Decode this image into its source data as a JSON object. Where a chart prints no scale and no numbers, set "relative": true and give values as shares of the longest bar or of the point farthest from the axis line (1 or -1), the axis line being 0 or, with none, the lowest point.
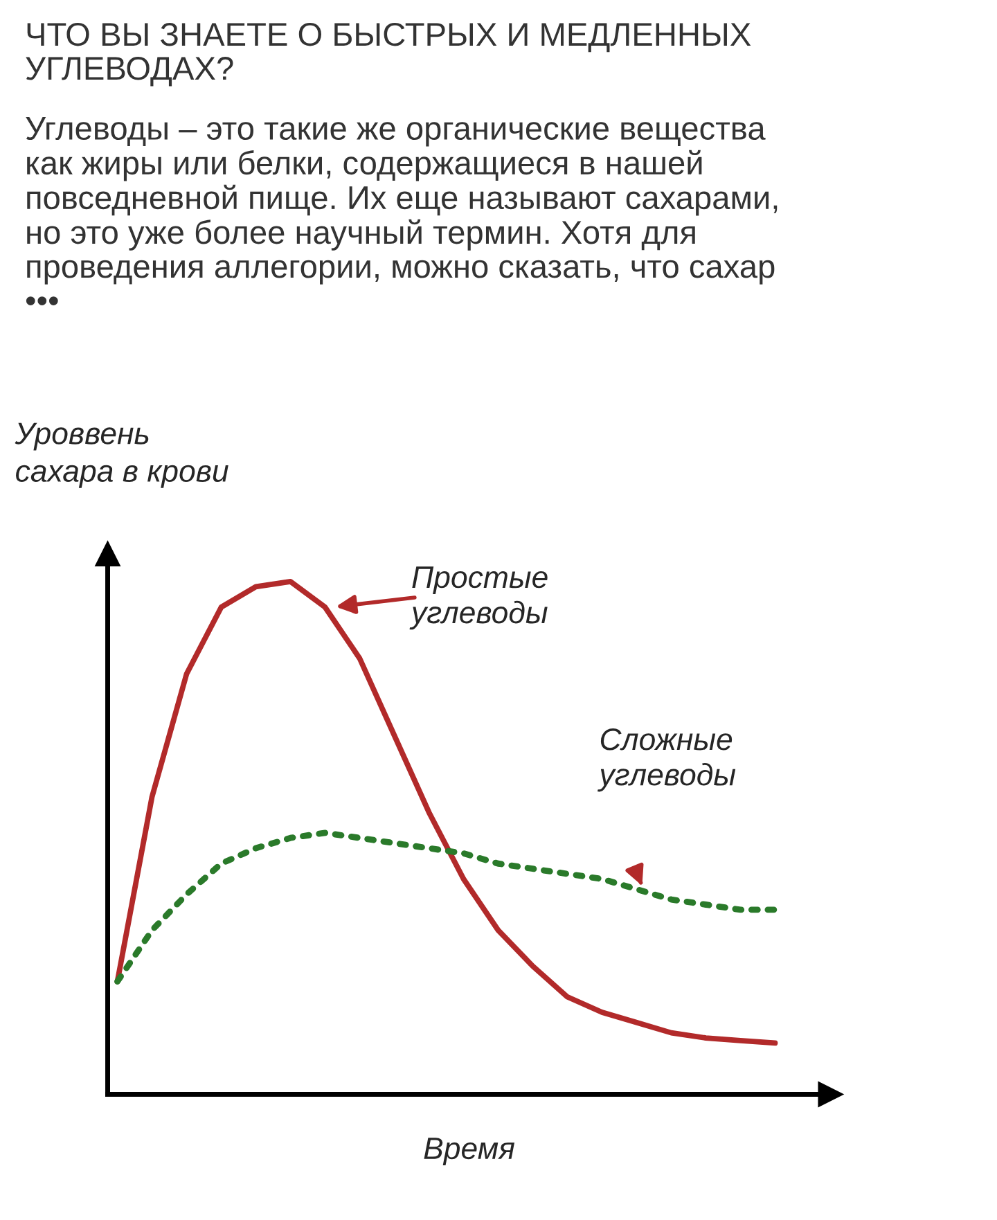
{
  "chart_data": {
    "type": "line",
    "relative": true,
    "title": "ЧТО ВЫ ЗНАЕТЕ О БЫСТРЫХ И МЕДЛЕННЫХ\nУГЛЕВОДАХ?",
    "subtitle": "Углеводы – это такие же органические вещества\nкак жиры или белки, содержащиеся в нашей\nповседневной пище. Их еще называют сахарами,\nно это уже более научный термин. Хотя для\nпроведения аллегории, можно сказать, что сахар\n•••",
    "xlabel": "Время",
    "ylabel": "Уроввень\nсахара в крови",
    "categories": [
      null,
      null,
      null,
      null,
      null,
      null,
      null,
      null,
      null,
      null,
      null,
      null,
      null,
      null,
      null,
      null,
      null,
      null,
      null,
      null
    ],
    "series": [
      {
        "name": "Простые\nуглеводы",
        "color": "#b22a2a",
        "line_style": "solid",
        "values": [
          0.22,
          0.58,
          0.82,
          0.95,
          0.99,
          1.0,
          0.95,
          0.85,
          0.7,
          0.55,
          0.42,
          0.32,
          0.25,
          0.19,
          0.16,
          0.14,
          0.12,
          0.11,
          0.105,
          0.1
        ]
      },
      {
        "name": "Сложные\nуглеводы",
        "color": "#2a7a2a",
        "line_style": "dotted",
        "values": [
          0.22,
          0.32,
          0.39,
          0.45,
          0.48,
          0.5,
          0.51,
          0.5,
          0.49,
          0.48,
          0.47,
          0.45,
          0.44,
          0.43,
          0.42,
          0.4,
          0.38,
          0.37,
          0.36,
          0.36
        ]
      }
    ],
    "grid": false
  }
}
